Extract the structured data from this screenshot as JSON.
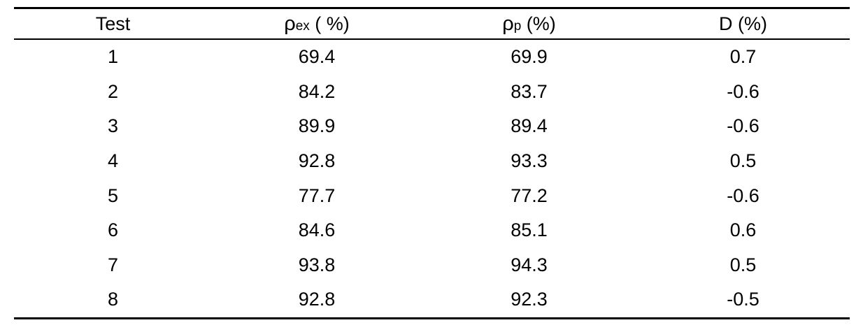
{
  "table": {
    "headers": {
      "test": "Test",
      "col2_symbol": "ρ",
      "col2_subscript": "ex",
      "col2_unit": " ( %)",
      "col3_symbol": "ρ",
      "col3_subscript": "p",
      "col3_unit": " (%)",
      "col4": "D (%)"
    },
    "rows": [
      [
        "1",
        "69.4",
        "69.9",
        "0.7"
      ],
      [
        "2",
        "84.2",
        "83.7",
        "-0.6"
      ],
      [
        "3",
        "89.9",
        "89.4",
        "-0.6"
      ],
      [
        "4",
        "92.8",
        "93.3",
        "0.5"
      ],
      [
        "5",
        "77.7",
        "77.2",
        "-0.6"
      ],
      [
        "6",
        "84.6",
        "85.1",
        "0.6"
      ],
      [
        "7",
        "93.8",
        "94.3",
        "0.5"
      ],
      [
        "8",
        "92.8",
        "92.3",
        "-0.5"
      ]
    ]
  }
}
